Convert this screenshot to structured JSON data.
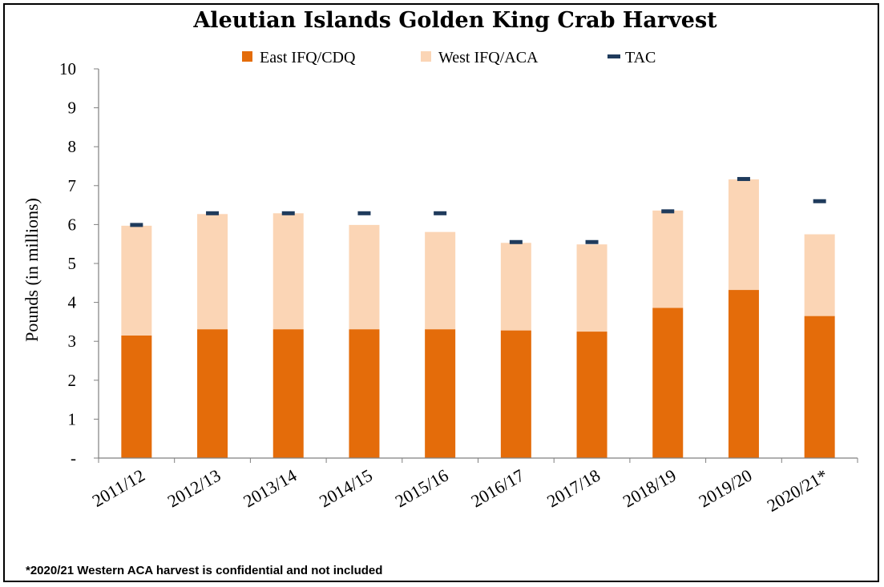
{
  "chart_data": {
    "type": "bar",
    "stacked": true,
    "title": "Aleutian Islands Golden King Crab Harvest",
    "ylabel": "Pounds (in millions)",
    "xlabel": "",
    "ylim": [
      0,
      10
    ],
    "yticks": [
      "-",
      "1",
      "2",
      "3",
      "4",
      "5",
      "6",
      "7",
      "8",
      "9",
      "10"
    ],
    "legend_position": "top",
    "grid": false,
    "categories": [
      "2011/12",
      "2012/13",
      "2013/14",
      "2014/15",
      "2015/16",
      "2016/17",
      "2017/18",
      "2018/19",
      "2019/20",
      "2020/21*"
    ],
    "series": [
      {
        "name": "East IFQ/CDQ",
        "color": "#E46C0A",
        "values": [
          3.15,
          3.31,
          3.31,
          3.31,
          3.31,
          3.28,
          3.25,
          3.86,
          4.32,
          3.65
        ]
      },
      {
        "name": "West IFQ/ACA",
        "color": "#FBD5B5",
        "values": [
          2.82,
          2.96,
          2.98,
          2.68,
          2.5,
          2.25,
          2.24,
          2.5,
          2.84,
          2.1
        ]
      }
    ],
    "markers": {
      "name": "TAC",
      "color": "#1F3B5C",
      "values": [
        5.99,
        6.29,
        6.29,
        6.29,
        6.29,
        5.55,
        5.55,
        6.34,
        7.17,
        6.6
      ]
    },
    "footnote": "*2020/21 Western ACA harvest is confidential and not included"
  }
}
